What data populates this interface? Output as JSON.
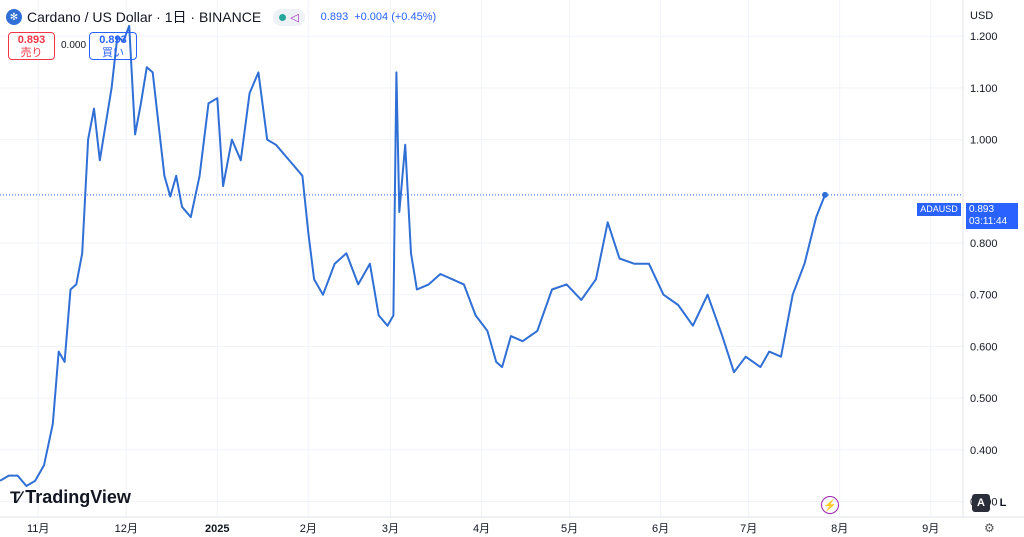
{
  "header": {
    "icon": "cardano-coin-icon",
    "title": "Cardano / US Dollar · 1日 · BINANCE",
    "price": "0.893",
    "change": "+0.004 (+0.45%)"
  },
  "trade": {
    "sell_price": "0.893",
    "sell_label": "売り",
    "spread": "0.000",
    "buy_price": "0.893",
    "buy_label": "買い"
  },
  "currency": "USD",
  "last_tag": {
    "symbol": "ADAUSD",
    "price": "0.893",
    "countdown": "03:11:44"
  },
  "logo_text": "TradingView",
  "scale_buttons": {
    "auto": "A",
    "log": "L"
  },
  "colors": {
    "line": "#2f6fd6",
    "accent": "#2962ff",
    "grid": "#f0f3fa"
  },
  "chart_data": {
    "type": "line",
    "title": "Cardano / US Dollar · 1日 · BINANCE",
    "series": [
      {
        "name": "ADAUSD",
        "x": [
          "2024-10-19",
          "2024-10-22",
          "2024-10-25",
          "2024-10-28",
          "2024-10-31",
          "2024-11-03",
          "2024-11-06",
          "2024-11-08",
          "2024-11-10",
          "2024-11-12",
          "2024-11-14",
          "2024-11-16",
          "2024-11-18",
          "2024-11-20",
          "2024-11-22",
          "2024-11-24",
          "2024-11-26",
          "2024-11-28",
          "2024-11-30",
          "2024-12-02",
          "2024-12-04",
          "2024-12-06",
          "2024-12-08",
          "2024-12-10",
          "2024-12-12",
          "2024-12-14",
          "2024-12-16",
          "2024-12-18",
          "2024-12-20",
          "2024-12-23",
          "2024-12-26",
          "2024-12-29",
          "2025-01-01",
          "2025-01-03",
          "2025-01-06",
          "2025-01-09",
          "2025-01-12",
          "2025-01-15",
          "2025-01-18",
          "2025-01-21",
          "2025-01-24",
          "2025-01-27",
          "2025-01-30",
          "2025-02-01",
          "2025-02-03",
          "2025-02-06",
          "2025-02-10",
          "2025-02-14",
          "2025-02-18",
          "2025-02-22",
          "2025-02-25",
          "2025-02-28",
          "2025-03-02",
          "2025-03-03",
          "2025-03-04",
          "2025-03-06",
          "2025-03-08",
          "2025-03-10",
          "2025-03-14",
          "2025-03-18",
          "2025-03-22",
          "2025-03-26",
          "2025-03-30",
          "2025-04-03",
          "2025-04-06",
          "2025-04-08",
          "2025-04-11",
          "2025-04-15",
          "2025-04-20",
          "2025-04-25",
          "2025-04-30",
          "2025-05-05",
          "2025-05-10",
          "2025-05-14",
          "2025-05-18",
          "2025-05-23",
          "2025-05-28",
          "2025-06-02",
          "2025-06-07",
          "2025-06-12",
          "2025-06-17",
          "2025-06-22",
          "2025-06-26",
          "2025-06-30",
          "2025-07-05",
          "2025-07-08",
          "2025-07-12",
          "2025-07-16",
          "2025-07-20",
          "2025-07-24",
          "2025-07-27"
        ],
        "y": [
          0.34,
          0.35,
          0.35,
          0.33,
          0.34,
          0.37,
          0.45,
          0.59,
          0.57,
          0.71,
          0.72,
          0.78,
          1.0,
          1.06,
          0.96,
          1.03,
          1.1,
          1.2,
          1.19,
          1.22,
          1.01,
          1.07,
          1.14,
          1.13,
          1.03,
          0.93,
          0.89,
          0.93,
          0.87,
          0.85,
          0.93,
          1.07,
          1.08,
          0.91,
          1.0,
          0.96,
          1.09,
          1.13,
          1.0,
          0.99,
          0.97,
          0.95,
          0.93,
          0.82,
          0.73,
          0.7,
          0.76,
          0.78,
          0.72,
          0.76,
          0.66,
          0.64,
          0.66,
          1.13,
          0.86,
          0.99,
          0.78,
          0.71,
          0.72,
          0.74,
          0.73,
          0.72,
          0.66,
          0.63,
          0.57,
          0.56,
          0.62,
          0.61,
          0.63,
          0.71,
          0.72,
          0.69,
          0.73,
          0.84,
          0.77,
          0.76,
          0.76,
          0.7,
          0.68,
          0.64,
          0.7,
          0.62,
          0.55,
          0.58,
          0.56,
          0.59,
          0.58,
          0.7,
          0.76,
          0.85,
          0.893
        ]
      }
    ],
    "xaxis_ticks": [
      "11月",
      "12月",
      "2025",
      "2月",
      "3月",
      "4月",
      "5月",
      "6月",
      "7月",
      "8月",
      "9月"
    ],
    "yaxis_ticks": [
      "1.200",
      "1.100",
      "1.000",
      "0.800",
      "0.700",
      "0.600",
      "0.500",
      "0.400",
      "0.300"
    ],
    "ylim": [
      0.27,
      1.27
    ],
    "xlim": [
      "2024-10-19",
      "2025-09-12"
    ],
    "grid": true,
    "last_price_line": 0.893
  }
}
